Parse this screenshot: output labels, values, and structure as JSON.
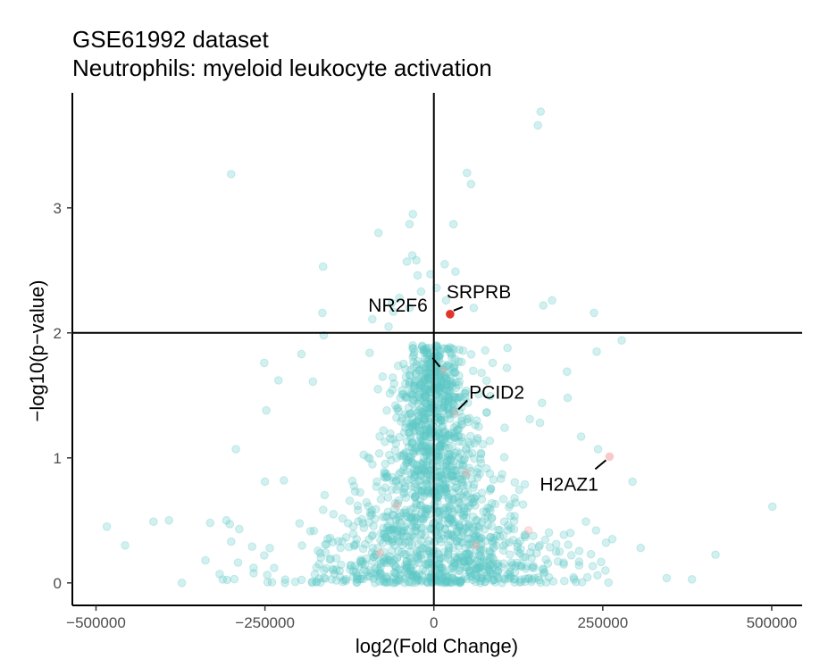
{
  "chart_data": {
    "type": "scatter",
    "title": "GSE61992 dataset",
    "subtitle": "Neutrophils: myeloid leukocyte activation",
    "xlabel": "log2(Fold Change)",
    "ylabel": "−log10(p−value)",
    "xlim": [
      -535000,
      545000
    ],
    "ylim": [
      -0.18,
      3.92
    ],
    "xticks": [
      {
        "value": -500000,
        "label": "−500000"
      },
      {
        "value": -250000,
        "label": "−250000"
      },
      {
        "value": 0,
        "label": "0"
      },
      {
        "value": 250000,
        "label": "250000"
      },
      {
        "value": 500000,
        "label": "500000"
      }
    ],
    "yticks": [
      {
        "value": 0,
        "label": "0"
      },
      {
        "value": 1,
        "label": "1"
      },
      {
        "value": 2,
        "label": "2"
      },
      {
        "value": 3,
        "label": "3"
      }
    ],
    "reference_lines": {
      "x": 0,
      "y": 2
    },
    "grid": false,
    "colors": {
      "background_points": "#5ec8c6",
      "highlight": "#e0352b",
      "faint_highlight": "#f4a7a2"
    },
    "outlier_points": [
      {
        "x": 158000,
        "y": 3.77
      },
      {
        "x": 154000,
        "y": 3.66
      },
      {
        "x": -300000,
        "y": 3.27
      },
      {
        "x": 49000,
        "y": 3.28
      },
      {
        "x": 55000,
        "y": 3.19
      },
      {
        "x": -31000,
        "y": 2.95
      },
      {
        "x": 29000,
        "y": 2.87
      },
      {
        "x": -36000,
        "y": 2.87
      },
      {
        "x": -82000,
        "y": 2.8
      },
      {
        "x": -32000,
        "y": 2.62
      },
      {
        "x": -26000,
        "y": 2.58
      },
      {
        "x": -40000,
        "y": 2.57
      },
      {
        "x": -164000,
        "y": 2.53
      },
      {
        "x": -5000,
        "y": 2.47
      },
      {
        "x": 16000,
        "y": 2.55
      },
      {
        "x": -24000,
        "y": 2.46
      },
      {
        "x": 32000,
        "y": 2.49
      },
      {
        "x": -19000,
        "y": 2.33
      },
      {
        "x": -51000,
        "y": 2.28
      },
      {
        "x": 59000,
        "y": 2.2
      },
      {
        "x": 4000,
        "y": 2.36
      },
      {
        "x": 18000,
        "y": 2.26
      },
      {
        "x": -60000,
        "y": 2.17
      },
      {
        "x": 162000,
        "y": 2.22
      },
      {
        "x": 175000,
        "y": 2.26
      },
      {
        "x": -62000,
        "y": 2.24
      },
      {
        "x": -36000,
        "y": 2.2
      },
      {
        "x": 237000,
        "y": 2.16
      },
      {
        "x": -165000,
        "y": 2.16
      },
      {
        "x": -91000,
        "y": 2.11
      },
      {
        "x": -163000,
        "y": 1.98
      },
      {
        "x": -67000,
        "y": 2.05
      },
      {
        "x": 109000,
        "y": 1.88
      },
      {
        "x": 278000,
        "y": 1.94
      },
      {
        "x": 241000,
        "y": 1.85
      },
      {
        "x": 76000,
        "y": 1.86
      },
      {
        "x": -95000,
        "y": 1.84
      },
      {
        "x": -196000,
        "y": 1.83
      },
      {
        "x": 87000,
        "y": 1.76
      },
      {
        "x": -251000,
        "y": 1.76
      },
      {
        "x": 197000,
        "y": 1.69
      },
      {
        "x": 108000,
        "y": 1.72
      },
      {
        "x": -230000,
        "y": 1.62
      },
      {
        "x": -179000,
        "y": 1.61
      },
      {
        "x": 198000,
        "y": 1.48
      },
      {
        "x": -248000,
        "y": 1.38
      },
      {
        "x": 160000,
        "y": 1.44
      },
      {
        "x": 142000,
        "y": 1.31
      },
      {
        "x": 157000,
        "y": 1.28
      },
      {
        "x": 218000,
        "y": 1.17
      },
      {
        "x": 243000,
        "y": 1.07
      },
      {
        "x": -293000,
        "y": 1.07
      },
      {
        "x": -250000,
        "y": 0.81
      },
      {
        "x": -222000,
        "y": 0.82
      },
      {
        "x": 294000,
        "y": 0.81
      },
      {
        "x": 501000,
        "y": 0.61
      },
      {
        "x": -484000,
        "y": 0.45
      },
      {
        "x": -415000,
        "y": 0.49
      },
      {
        "x": -392000,
        "y": 0.5
      },
      {
        "x": -331000,
        "y": 0.48
      },
      {
        "x": -307000,
        "y": 0.5
      },
      {
        "x": -302000,
        "y": 0.47
      },
      {
        "x": -288000,
        "y": 0.43
      },
      {
        "x": -457000,
        "y": 0.3
      },
      {
        "x": -300000,
        "y": 0.33
      },
      {
        "x": -338000,
        "y": 0.18
      },
      {
        "x": -269000,
        "y": 0.29
      },
      {
        "x": -251000,
        "y": 0.22
      },
      {
        "x": 306000,
        "y": 0.28
      },
      {
        "x": 264000,
        "y": 0.35
      },
      {
        "x": 240000,
        "y": 0.42
      },
      {
        "x": 225000,
        "y": 0.49
      },
      {
        "x": 186000,
        "y": 0.25
      },
      {
        "x": 202000,
        "y": 0.4
      }
    ],
    "highlight_points": [
      {
        "label": "SRPRB",
        "x": 24000,
        "y": 2.15,
        "color": "#e0352b",
        "opacity": 1
      },
      {
        "label": "NR2F6",
        "x": 14000,
        "y": 1.7,
        "color": "#f4a7a2",
        "opacity": 0.3
      },
      {
        "label": "PCID2",
        "x": 31000,
        "y": 1.36,
        "color": "#f4a7a2",
        "opacity": 0.3
      },
      {
        "label": "H2AZ1",
        "x": 260000,
        "y": 1.01,
        "color": "#f4a7a2",
        "opacity": 0.6
      }
    ],
    "faint_points": [
      {
        "x": 48000,
        "y": 0.88
      },
      {
        "x": 140000,
        "y": 0.42
      },
      {
        "x": -55000,
        "y": 0.62
      },
      {
        "x": 62000,
        "y": 0.3
      },
      {
        "x": -80000,
        "y": 0.24
      }
    ]
  }
}
